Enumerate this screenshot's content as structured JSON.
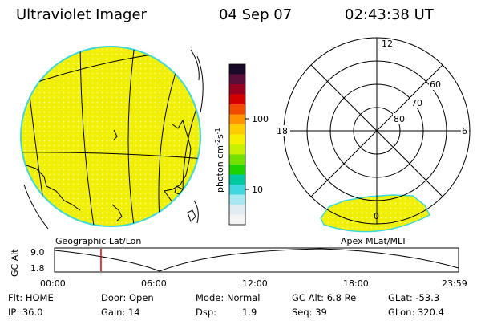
{
  "header": {
    "instrument": "Ultraviolet Imager",
    "date": "04 Sep 07",
    "time": "02:43:38 UT"
  },
  "colorbar": {
    "unit_label": "photon cm",
    "unit_exp1": "-2",
    "unit_s": "s",
    "unit_exp2": "-1",
    "tick_100": "100",
    "tick_10": "10",
    "colors": [
      "#1a0a2a",
      "#5a0f3a",
      "#9a0020",
      "#d40000",
      "#f24a00",
      "#ff9400",
      "#ffcc00",
      "#f4f000",
      "#c8f000",
      "#74e000",
      "#1ed200",
      "#00c8a0",
      "#40d8e0",
      "#a8e8f0",
      "#e0ecf0",
      "#f4f4f4"
    ]
  },
  "left_map": {
    "label": "Geographic Lat/Lon"
  },
  "right_map": {
    "label": "Apex MLat/MLT",
    "mlt_12": "12",
    "mlt_18": "18",
    "mlt_6": "6",
    "mlt_0": "0",
    "mlat_60": "60",
    "mlat_70": "70",
    "mlat_80": "80"
  },
  "altitude_plot": {
    "ylabel": "GC Alt",
    "ytick_top": "9.0",
    "ytick_bottom": "1.8",
    "xticks": [
      "00:00",
      "06:00",
      "12:00",
      "18:00",
      "23:59"
    ],
    "current_time_fraction": 0.115
  },
  "info": {
    "flt": "Flt: HOME",
    "ip": "IP: 36.0",
    "door": "Door: Open",
    "gain": "Gain: 14",
    "mode": "Mode: Normal",
    "dsp_label": "Dsp:",
    "dsp_value": "1.9",
    "gc_alt": "GC Alt: 6.8 Re",
    "seq": "Seq: 39",
    "glat": "GLat: -53.3",
    "glon": "GLon: 320.4"
  }
}
